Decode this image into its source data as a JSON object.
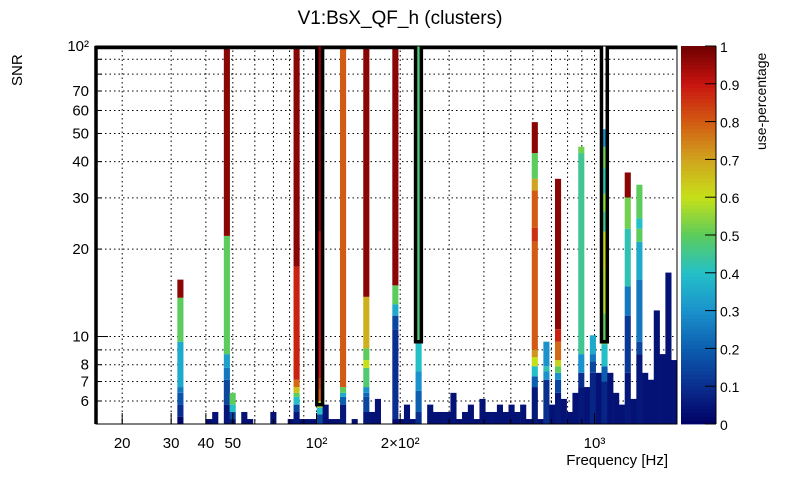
{
  "chart_data": {
    "type": "heatmap",
    "title": "V1:BsX_QF_h (clusters)",
    "xlabel": "Frequency [Hz]",
    "ylabel": "SNR",
    "zlabel": "use-percentage",
    "x_scale": "log",
    "y_scale": "log",
    "xlim": [
      16.1,
      1980
    ],
    "ylim": [
      5,
      100
    ],
    "zlim": [
      0,
      1
    ],
    "nbins": 100,
    "grid": true,
    "x_ticks": [
      {
        "value": 20,
        "label": "20"
      },
      {
        "value": 30,
        "label": "30"
      },
      {
        "value": 40,
        "label": "40"
      },
      {
        "value": 50,
        "label": "50"
      },
      {
        "value": 100,
        "label": "10²"
      },
      {
        "value": 200,
        "label": "2×10²"
      },
      {
        "value": 1000,
        "label": "10³"
      }
    ],
    "x_grid": [
      20,
      30,
      40,
      50,
      60,
      70,
      80,
      90,
      100,
      200,
      300,
      400,
      500,
      600,
      700,
      800,
      900,
      1000
    ],
    "y_ticks": [
      {
        "value": 6,
        "label": "6"
      },
      {
        "value": 7,
        "label": "7"
      },
      {
        "value": 8,
        "label": "8"
      },
      {
        "value": 10,
        "label": "10"
      },
      {
        "value": 20,
        "label": "20"
      },
      {
        "value": 30,
        "label": "30"
      },
      {
        "value": 40,
        "label": "40"
      },
      {
        "value": 50,
        "label": "50"
      },
      {
        "value": 60,
        "label": "60"
      },
      {
        "value": 70,
        "label": "70"
      },
      {
        "value": 100,
        "label": "10²"
      }
    ],
    "y_grid": [
      6,
      7,
      8,
      9,
      10,
      20,
      30,
      40,
      50,
      60,
      70,
      80,
      90
    ],
    "z_ticks": [
      "0",
      "0.1",
      "0.2",
      "0.3",
      "0.4",
      "0.5",
      "0.6",
      "0.7",
      "0.8",
      "0.9",
      "1"
    ],
    "palette": [
      "#000064",
      "#0a2e8e",
      "#0c5eb0",
      "#1a92cc",
      "#24c0c8",
      "#5ccc5c",
      "#c6e018",
      "#d0a41e",
      "#d25a12",
      "#c81410",
      "#6e0000"
    ],
    "envelope": {
      "default": 100,
      "dips": {
        "38": 5.83,
        "55": 9.6,
        "87": 9.6
      }
    },
    "bins": [
      [
        14,
        [
          [
            5.3,
            0.02
          ],
          [
            5.83,
            0.1
          ],
          [
            6.4,
            0.18
          ],
          [
            6.7,
            0.25
          ],
          [
            9.6,
            0.35
          ],
          [
            13.6,
            0.5
          ],
          [
            15.7,
            0.97
          ]
        ]
      ],
      [
        19,
        [
          [
            5.2,
            0.03
          ]
        ]
      ],
      [
        20,
        [
          [
            5.5,
            0.04
          ]
        ]
      ],
      [
        22,
        [
          [
            5.83,
            0.05
          ],
          [
            7.1,
            0.15
          ],
          [
            7.8,
            0.25
          ],
          [
            8.7,
            0.33
          ],
          [
            22.2,
            0.5
          ],
          [
            100,
            0.97
          ]
        ]
      ],
      [
        23,
        [
          [
            5.2,
            0.05
          ],
          [
            5.5,
            0.15
          ],
          [
            5.83,
            0.4
          ],
          [
            6.4,
            0.5
          ]
        ]
      ],
      [
        25,
        [
          [
            5.5,
            0.04
          ]
        ]
      ],
      [
        26,
        [
          [
            5.2,
            0.03
          ]
        ]
      ],
      [
        30,
        [
          [
            5.5,
            0.04
          ]
        ]
      ],
      [
        33,
        [
          [
            5.2,
            0.03
          ]
        ]
      ],
      [
        34,
        [
          [
            5.5,
            0.05
          ],
          [
            5.83,
            0.15
          ],
          [
            6.2,
            0.4
          ],
          [
            6.4,
            0.5
          ],
          [
            6.7,
            0.65
          ],
          [
            7.1,
            0.78
          ],
          [
            17.4,
            0.88
          ],
          [
            100,
            0.97
          ]
        ]
      ],
      [
        35,
        [
          [
            5.2,
            0.03
          ]
        ]
      ],
      [
        36,
        [
          [
            5.2,
            0.03
          ]
        ]
      ],
      [
        37,
        [
          [
            5.2,
            0.03
          ]
        ]
      ],
      [
        38,
        [
          [
            5.4,
            0.15
          ],
          [
            5.7,
            0.4
          ],
          [
            6.0,
            0.6
          ],
          [
            6.6,
            0.8
          ],
          [
            7.2,
            0.85
          ],
          [
            23,
            0.9
          ],
          [
            100,
            0.97
          ]
        ]
      ],
      [
        39,
        [
          [
            5.83,
            0.04
          ]
        ]
      ],
      [
        40,
        [
          [
            5.2,
            0.03
          ]
        ]
      ],
      [
        41,
        [
          [
            5.2,
            0.03
          ]
        ]
      ],
      [
        42,
        [
          [
            5.83,
            0.05
          ],
          [
            6.2,
            0.2
          ],
          [
            6.4,
            0.35
          ],
          [
            6.7,
            0.5
          ],
          [
            100,
            0.8
          ]
        ]
      ],
      [
        44,
        [
          [
            5.2,
            0.03
          ]
        ]
      ],
      [
        46,
        [
          [
            5.5,
            0.05
          ],
          [
            6.2,
            0.15
          ],
          [
            6.4,
            0.22
          ],
          [
            6.7,
            0.3
          ],
          [
            7.8,
            0.48
          ],
          [
            8.3,
            0.6
          ],
          [
            9.1,
            0.5
          ],
          [
            13.7,
            0.68
          ],
          [
            100,
            0.97
          ]
        ]
      ],
      [
        47,
        [
          [
            5.5,
            0.04
          ]
        ]
      ],
      [
        48,
        [
          [
            6.1,
            0.04
          ]
        ]
      ],
      [
        51,
        [
          [
            5.2,
            0.02
          ],
          [
            10.6,
            0.1
          ],
          [
            11.8,
            0.15
          ],
          [
            12.9,
            0.35
          ],
          [
            15,
            0.5
          ],
          [
            100,
            0.97
          ]
        ]
      ],
      [
        52,
        [
          [
            5.2,
            0.03
          ]
        ]
      ],
      [
        53,
        [
          [
            5.83,
            0.04
          ]
        ]
      ],
      [
        54,
        [
          [
            5.2,
            0.03
          ]
        ]
      ],
      [
        55,
        [
          [
            5.5,
            0.1
          ],
          [
            6.5,
            0.2
          ],
          [
            7.6,
            0.3
          ],
          [
            9.6,
            0.4
          ],
          [
            100,
            0.48
          ]
        ]
      ],
      [
        57,
        [
          [
            5.83,
            0.04
          ]
        ]
      ],
      [
        58,
        [
          [
            5.5,
            0.04
          ]
        ]
      ],
      [
        59,
        [
          [
            5.5,
            0.04
          ]
        ]
      ],
      [
        60,
        [
          [
            5.5,
            0.04
          ]
        ]
      ],
      [
        61,
        [
          [
            6.4,
            0.04
          ]
        ]
      ],
      [
        62,
        [
          [
            5.2,
            0.03
          ]
        ]
      ],
      [
        63,
        [
          [
            5.5,
            0.04
          ]
        ]
      ],
      [
        64,
        [
          [
            5.83,
            0.04
          ]
        ]
      ],
      [
        65,
        [
          [
            5.2,
            0.03
          ]
        ]
      ],
      [
        66,
        [
          [
            6.1,
            0.04
          ]
        ]
      ],
      [
        67,
        [
          [
            5.5,
            0.04
          ]
        ]
      ],
      [
        68,
        [
          [
            5.5,
            0.04
          ]
        ]
      ],
      [
        69,
        [
          [
            5.83,
            0.04
          ]
        ]
      ],
      [
        70,
        [
          [
            5.5,
            0.04
          ]
        ]
      ],
      [
        71,
        [
          [
            5.83,
            0.04
          ]
        ]
      ],
      [
        72,
        [
          [
            5.5,
            0.04
          ]
        ]
      ],
      [
        73,
        [
          [
            5.83,
            0.04
          ]
        ]
      ],
      [
        74,
        [
          [
            5.2,
            0.03
          ]
        ]
      ],
      [
        75,
        [
          [
            6.7,
            0.05
          ],
          [
            7.3,
            0.2
          ],
          [
            7.9,
            0.4
          ],
          [
            8.5,
            0.6
          ],
          [
            9.0,
            0.72
          ],
          [
            21.2,
            0.8
          ],
          [
            23.7,
            0.86
          ],
          [
            31.8,
            0.8
          ],
          [
            34.9,
            0.7
          ],
          [
            42.8,
            0.5
          ],
          [
            54.7,
            0.97
          ]
        ]
      ],
      [
        76,
        [
          [
            5.2,
            0.03
          ]
        ]
      ],
      [
        77,
        [
          [
            7.1,
            0.1
          ],
          [
            7.6,
            0.3
          ],
          [
            7.9,
            0.42
          ],
          [
            9.6,
            0.3
          ]
        ]
      ],
      [
        78,
        [
          [
            5.83,
            0.04
          ]
        ]
      ],
      [
        79,
        [
          [
            6.4,
            0.05
          ],
          [
            7.1,
            0.15
          ],
          [
            7.5,
            0.3
          ],
          [
            7.9,
            0.5
          ],
          [
            8.3,
            0.62
          ],
          [
            9.6,
            0.78
          ],
          [
            10.6,
            0.88
          ],
          [
            34.9,
            0.97
          ]
        ]
      ],
      [
        80,
        [
          [
            6.1,
            0.04
          ]
        ]
      ],
      [
        81,
        [
          [
            5.5,
            0.04
          ]
        ]
      ],
      [
        82,
        [
          [
            6.4,
            0.04
          ]
        ]
      ],
      [
        83,
        [
          [
            6.7,
            0.05
          ],
          [
            7.5,
            0.1
          ],
          [
            8.7,
            0.3
          ],
          [
            42.8,
            0.45
          ],
          [
            45,
            0.52
          ]
        ]
      ],
      [
        84,
        [
          [
            6.7,
            0.04
          ]
        ]
      ],
      [
        85,
        [
          [
            7.5,
            0.08
          ],
          [
            8.2,
            0.15
          ],
          [
            8.7,
            0.25
          ],
          [
            10.1,
            0.35
          ]
        ]
      ],
      [
        86,
        [
          [
            7.5,
            0.04
          ]
        ]
      ],
      [
        87,
        [
          [
            7.0,
            0.08
          ],
          [
            7.9,
            0.2
          ],
          [
            9.4,
            0.4
          ],
          [
            12,
            0.5
          ],
          [
            17,
            0.58
          ],
          [
            23,
            0.62
          ],
          [
            27,
            0.45
          ],
          [
            31,
            0.55
          ],
          [
            38,
            0.42
          ],
          [
            45,
            0.52
          ],
          [
            51.7,
            0.3
          ]
        ]
      ],
      [
        88,
        [
          [
            7.5,
            0.04
          ]
        ]
      ],
      [
        89,
        [
          [
            6.4,
            0.04
          ]
        ]
      ],
      [
        90,
        [
          [
            5.83,
            0.04
          ]
        ]
      ],
      [
        91,
        [
          [
            7.5,
            0.05
          ],
          [
            11.8,
            0.12
          ],
          [
            14.9,
            0.25
          ],
          [
            23.5,
            0.42
          ],
          [
            30.1,
            0.52
          ],
          [
            36.7,
            0.97
          ]
        ]
      ],
      [
        92,
        [
          [
            6.1,
            0.04
          ]
        ]
      ],
      [
        93,
        [
          [
            8.7,
            0.05
          ],
          [
            9.6,
            0.15
          ],
          [
            15.7,
            0.25
          ],
          [
            21.2,
            0.35
          ],
          [
            23.5,
            0.5
          ],
          [
            25.5,
            0.4
          ],
          [
            33.3,
            0.5
          ]
        ]
      ],
      [
        94,
        [
          [
            7.5,
            0.04
          ]
        ]
      ],
      [
        95,
        [
          [
            7.1,
            0.04
          ]
        ]
      ],
      [
        96,
        [
          [
            12.3,
            0.04
          ]
        ]
      ],
      [
        97,
        [
          [
            8.7,
            0.04
          ]
        ]
      ],
      [
        98,
        [
          [
            16.6,
            0.04
          ]
        ]
      ],
      [
        99,
        [
          [
            8.3,
            0.04
          ]
        ]
      ]
    ]
  }
}
